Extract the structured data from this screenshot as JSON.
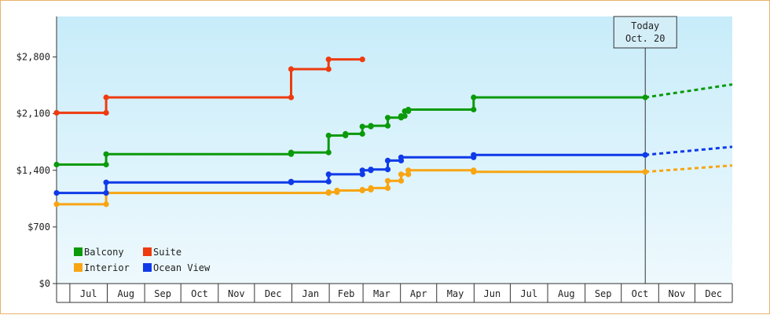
{
  "chart_data": {
    "type": "line",
    "title": "",
    "xlabel": "",
    "ylabel": "",
    "x_ticks": [
      "Jul",
      "Aug",
      "Sep",
      "Oct",
      "Nov",
      "Dec",
      "Jan",
      "Feb",
      "Mar",
      "Apr",
      "May",
      "Jun",
      "Jul",
      "Aug",
      "Sep",
      "Oct",
      "Nov",
      "Dec"
    ],
    "y_ticks": [
      "$0",
      "$700",
      "$1,400",
      "$2,100",
      "$2,800"
    ],
    "ylim": [
      0,
      3300
    ],
    "x_range": [
      "2012-06-20",
      "2013-12-31"
    ],
    "grid": false,
    "legend_position": "bottom-left",
    "today": {
      "line1": "Today",
      "line2": "Oct. 20",
      "date": "2013-10-20"
    },
    "series": [
      {
        "name": "Balcony",
        "color": "#0a9a0a",
        "points": [
          [
            "2012-06-20",
            1470
          ],
          [
            "2012-07-31",
            1470
          ],
          [
            "2012-07-31",
            1600
          ],
          [
            "2012-12-31",
            1600
          ],
          [
            "2012-12-31",
            1620
          ],
          [
            "2013-01-31",
            1620
          ],
          [
            "2013-01-31",
            1830
          ],
          [
            "2013-02-14",
            1830
          ],
          [
            "2013-02-14",
            1850
          ],
          [
            "2013-02-28",
            1850
          ],
          [
            "2013-02-28",
            1940
          ],
          [
            "2013-03-07",
            1940
          ],
          [
            "2013-03-07",
            1950
          ],
          [
            "2013-03-21",
            1950
          ],
          [
            "2013-03-21",
            2050
          ],
          [
            "2013-04-01",
            2050
          ],
          [
            "2013-04-01",
            2070
          ],
          [
            "2013-04-04",
            2070
          ],
          [
            "2013-04-04",
            2130
          ],
          [
            "2013-04-07",
            2130
          ],
          [
            "2013-04-07",
            2150
          ],
          [
            "2013-05-31",
            2150
          ],
          [
            "2013-05-31",
            2300
          ],
          [
            "2013-10-20",
            2300
          ]
        ],
        "projection": [
          [
            "2013-10-20",
            2300
          ],
          [
            "2013-12-31",
            2460
          ]
        ]
      },
      {
        "name": "Suite",
        "color": "#ee3b0f",
        "points": [
          [
            "2012-06-20",
            2110
          ],
          [
            "2012-07-31",
            2110
          ],
          [
            "2012-07-31",
            2300
          ],
          [
            "2012-12-31",
            2300
          ],
          [
            "2012-12-31",
            2650
          ],
          [
            "2013-01-31",
            2650
          ],
          [
            "2013-01-31",
            2770
          ],
          [
            "2013-02-28",
            2770
          ]
        ]
      },
      {
        "name": "Interior",
        "color": "#f7a512",
        "points": [
          [
            "2012-06-20",
            980
          ],
          [
            "2012-07-31",
            980
          ],
          [
            "2012-07-31",
            1120
          ],
          [
            "2013-01-31",
            1120
          ],
          [
            "2013-01-31",
            1130
          ],
          [
            "2013-02-07",
            1130
          ],
          [
            "2013-02-07",
            1150
          ],
          [
            "2013-02-28",
            1150
          ],
          [
            "2013-02-28",
            1160
          ],
          [
            "2013-03-07",
            1160
          ],
          [
            "2013-03-07",
            1180
          ],
          [
            "2013-03-21",
            1180
          ],
          [
            "2013-03-21",
            1270
          ],
          [
            "2013-04-01",
            1270
          ],
          [
            "2013-04-01",
            1350
          ],
          [
            "2013-04-07",
            1350
          ],
          [
            "2013-04-07",
            1400
          ],
          [
            "2013-05-31",
            1400
          ],
          [
            "2013-05-31",
            1380
          ],
          [
            "2013-10-20",
            1380
          ]
        ],
        "projection": [
          [
            "2013-10-20",
            1380
          ],
          [
            "2013-12-31",
            1460
          ]
        ]
      },
      {
        "name": "Ocean View",
        "color": "#0f3ae8",
        "points": [
          [
            "2012-06-20",
            1120
          ],
          [
            "2012-07-31",
            1120
          ],
          [
            "2012-07-31",
            1250
          ],
          [
            "2012-12-31",
            1250
          ],
          [
            "2012-12-31",
            1260
          ],
          [
            "2013-01-31",
            1260
          ],
          [
            "2013-01-31",
            1350
          ],
          [
            "2013-02-28",
            1350
          ],
          [
            "2013-02-28",
            1400
          ],
          [
            "2013-03-07",
            1400
          ],
          [
            "2013-03-07",
            1410
          ],
          [
            "2013-03-21",
            1410
          ],
          [
            "2013-03-21",
            1520
          ],
          [
            "2013-04-01",
            1520
          ],
          [
            "2013-04-01",
            1560
          ],
          [
            "2013-05-31",
            1560
          ],
          [
            "2013-05-31",
            1590
          ],
          [
            "2013-10-20",
            1590
          ]
        ],
        "projection": [
          [
            "2013-10-20",
            1590
          ],
          [
            "2013-12-31",
            1690
          ]
        ]
      }
    ]
  }
}
